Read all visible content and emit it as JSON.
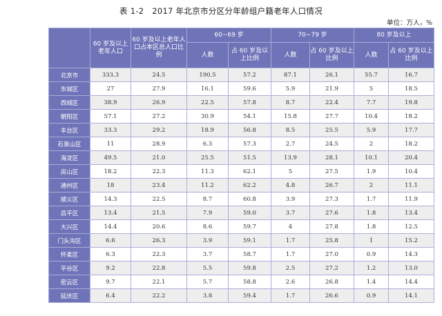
{
  "title": "表 1-2　2017 年北京市分区分年龄组户籍老年人口情况",
  "unit": "单位：万人，%",
  "headers": {
    "col_total": "60 岁及以上老年人口",
    "col_ratio": "60 岁及以上老年人口占本区总人口比例",
    "group1": "60~69 岁",
    "group2": "70~79 岁",
    "group3": "80 岁及以上",
    "sub_count": "人数",
    "sub_ratio": "占 60 岁及以上比例"
  },
  "rows": [
    {
      "region": "北京市",
      "v": [
        "333.3",
        "24.5",
        "190.5",
        "57.2",
        "87.1",
        "26.1",
        "55.7",
        "16.7"
      ]
    },
    {
      "region": "东城区",
      "v": [
        "27",
        "27.9",
        "16.1",
        "59.6",
        "5.9",
        "21.9",
        "5",
        "18.5"
      ]
    },
    {
      "region": "西城区",
      "v": [
        "38.9",
        "26.9",
        "22.5",
        "57.8",
        "8.7",
        "22.4",
        "7.7",
        "19.8"
      ]
    },
    {
      "region": "朝阳区",
      "v": [
        "57.1",
        "27.2",
        "30.9",
        "54.1",
        "15.8",
        "27.7",
        "10.4",
        "18.2"
      ]
    },
    {
      "region": "丰台区",
      "v": [
        "33.3",
        "29.2",
        "18.9",
        "56.8",
        "8.5",
        "25.5",
        "5.9",
        "17.7"
      ]
    },
    {
      "region": "石景山区",
      "v": [
        "11",
        "28.9",
        "6.3",
        "57.3",
        "2.7",
        "24.5",
        "2",
        "18.2"
      ]
    },
    {
      "region": "海淀区",
      "v": [
        "49.5",
        "21.0",
        "25.5",
        "51.5",
        "13.9",
        "28.1",
        "10.1",
        "20.4"
      ]
    },
    {
      "region": "房山区",
      "v": [
        "18.2",
        "22.3",
        "11.3",
        "62.1",
        "5",
        "27.5",
        "1.9",
        "10.4"
      ]
    },
    {
      "region": "通州区",
      "v": [
        "18",
        "23.4",
        "11.2",
        "62.2",
        "4.8",
        "26.7",
        "2",
        "11.1"
      ]
    },
    {
      "region": "顺义区",
      "v": [
        "14.3",
        "22.5",
        "8.7",
        "60.8",
        "3.9",
        "27.3",
        "1.7",
        "11.9"
      ]
    },
    {
      "region": "昌平区",
      "v": [
        "13.4",
        "21.5",
        "7.9",
        "59.0",
        "3.7",
        "27.6",
        "1.8",
        "13.4"
      ]
    },
    {
      "region": "大兴区",
      "v": [
        "14.4",
        "20.6",
        "8.6",
        "59.7",
        "4",
        "27.8",
        "1.8",
        "12.5"
      ]
    },
    {
      "region": "门头沟区",
      "v": [
        "6.6",
        "26.3",
        "3.9",
        "59.1",
        "1.7",
        "25.8",
        "1",
        "15.2"
      ]
    },
    {
      "region": "怀柔区",
      "v": [
        "6.3",
        "22.3",
        "3.7",
        "58.7",
        "1.7",
        "27.0",
        "0.9",
        "14.3"
      ]
    },
    {
      "region": "平谷区",
      "v": [
        "9.2",
        "22.8",
        "5.5",
        "59.8",
        "2.5",
        "27.2",
        "1.2",
        "13.0"
      ]
    },
    {
      "region": "密云区",
      "v": [
        "9.7",
        "22.1",
        "5.7",
        "58.8",
        "2.6",
        "26.8",
        "1.4",
        "14.4"
      ]
    },
    {
      "region": "延庆区",
      "v": [
        "6.4",
        "22.2",
        "3.8",
        "59.4",
        "1.7",
        "26.6",
        "0.9",
        "14.1"
      ]
    }
  ]
}
